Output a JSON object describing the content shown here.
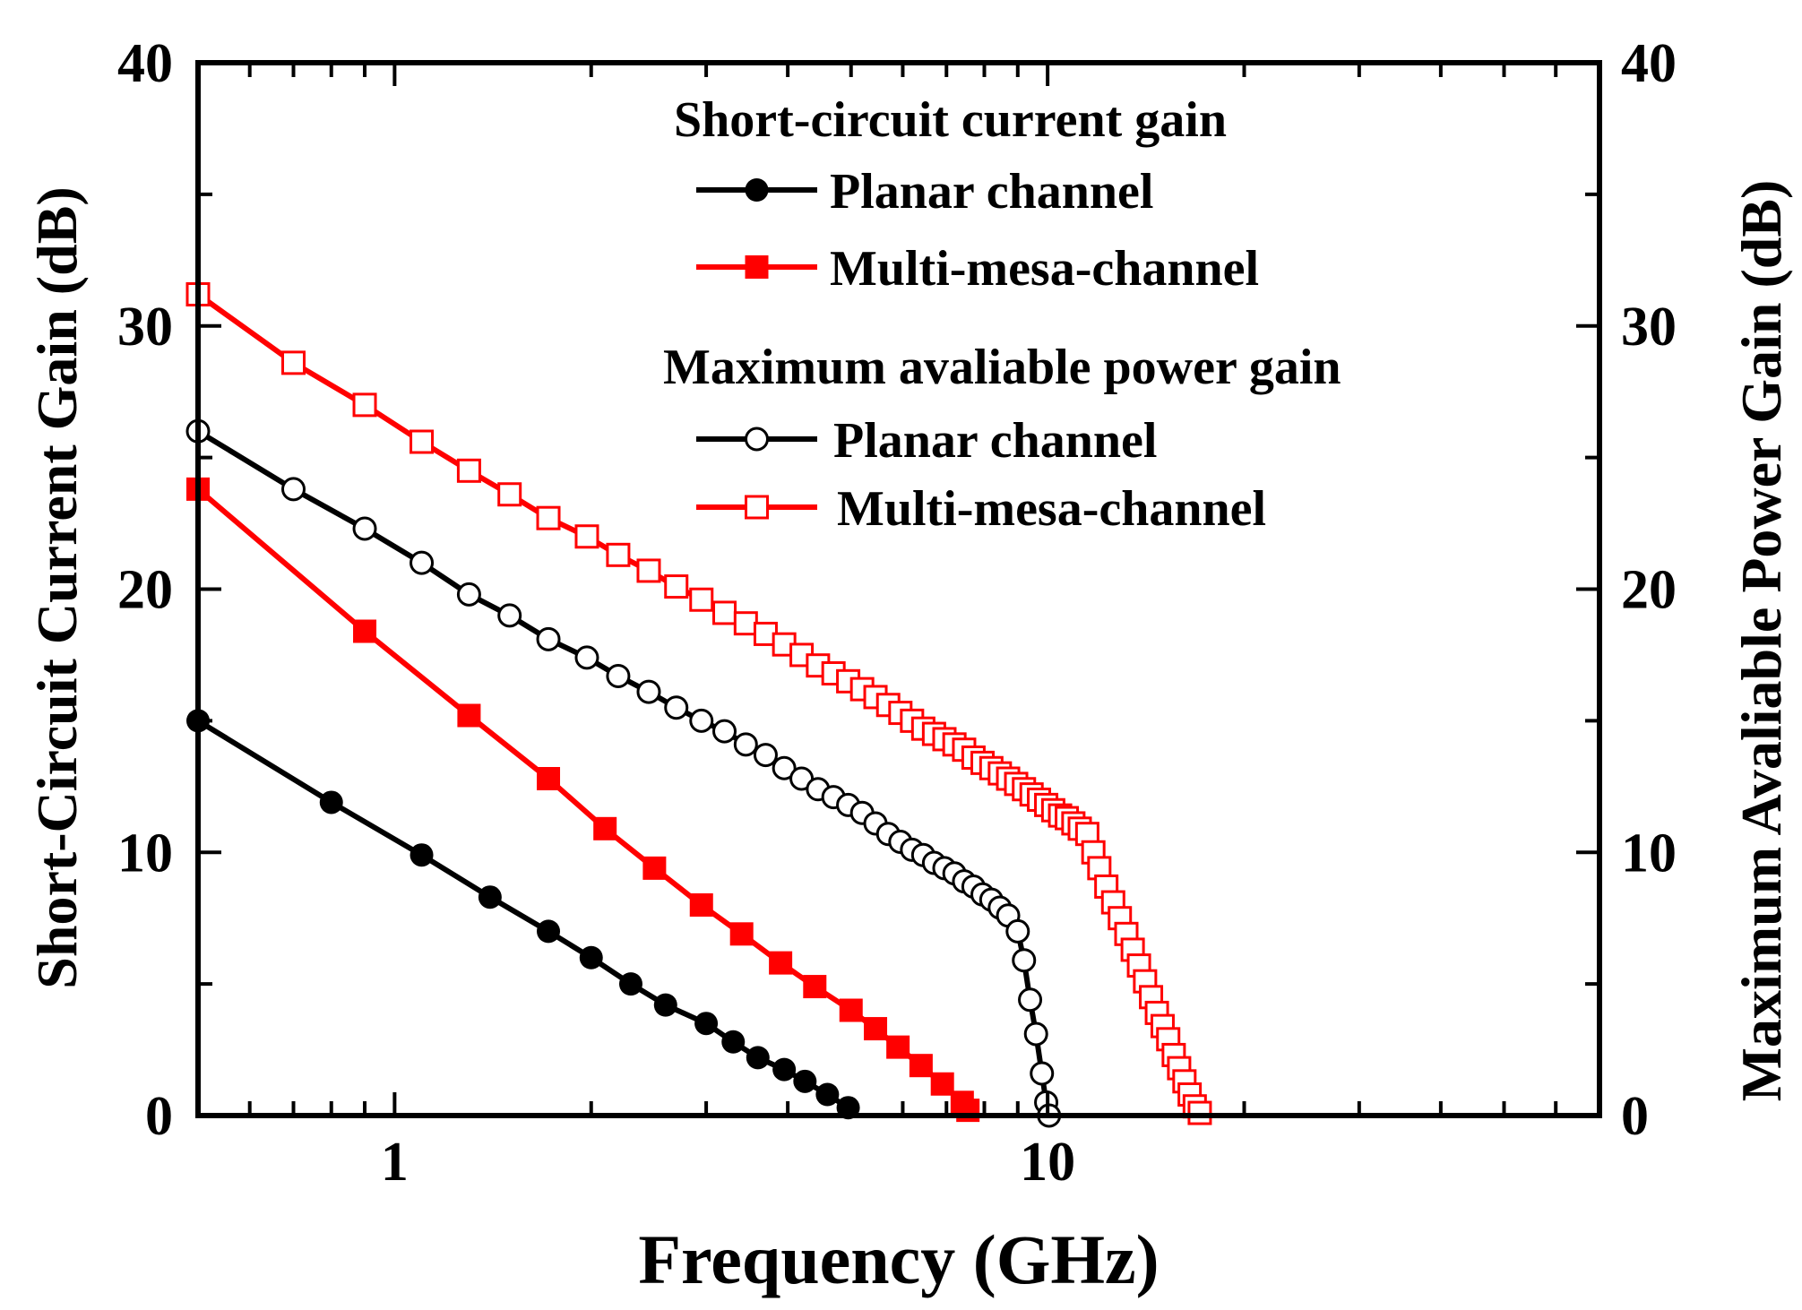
{
  "chart_data": {
    "type": "line",
    "x_scale": "log",
    "xlim": [
      0.5,
      70
    ],
    "ylim": [
      0,
      40
    ],
    "y2lim": [
      0,
      40
    ],
    "xlabel": "Frequency (GHz)",
    "ylabel": "Short-Circuit Current Gain (dB)",
    "y2label": "Maximum Avaliable Power Gain (dB)",
    "x_ticks": [
      {
        "value": 1,
        "label": "1"
      },
      {
        "value": 10,
        "label": "10"
      }
    ],
    "y_ticks": [
      {
        "value": 0,
        "label": "0"
      },
      {
        "value": 10,
        "label": "10"
      },
      {
        "value": 20,
        "label": "20"
      },
      {
        "value": 30,
        "label": "30"
      },
      {
        "value": 40,
        "label": "40"
      }
    ],
    "y2_ticks": [
      {
        "value": 0,
        "label": "0"
      },
      {
        "value": 10,
        "label": "10"
      },
      {
        "value": 20,
        "label": "20"
      },
      {
        "value": 30,
        "label": "30"
      },
      {
        "value": 40,
        "label": "40"
      }
    ],
    "grid": false,
    "legend_position": "top-right",
    "legend_groups": [
      {
        "title": "Short-circuit current gain",
        "series": [
          0,
          1
        ]
      },
      {
        "title": "Maximum avaliable power gain",
        "series": [
          2,
          3
        ]
      }
    ],
    "series": [
      {
        "name": "Planar channel",
        "group": "Short-circuit current gain",
        "axis": "left",
        "color": "#000000",
        "marker": "filled-circle",
        "points": [
          [
            0.5,
            15.0
          ],
          [
            0.8,
            11.9
          ],
          [
            1.1,
            9.9
          ],
          [
            1.4,
            8.3
          ],
          [
            1.72,
            7.0
          ],
          [
            2.0,
            6.0
          ],
          [
            2.3,
            5.0
          ],
          [
            2.6,
            4.2
          ],
          [
            3.0,
            3.5
          ],
          [
            3.3,
            2.8
          ],
          [
            3.6,
            2.2
          ],
          [
            3.95,
            1.75
          ],
          [
            4.25,
            1.3
          ],
          [
            4.6,
            0.8
          ],
          [
            4.95,
            0.3
          ]
        ]
      },
      {
        "name": "Multi-mesa-channel",
        "group": "Short-circuit current gain",
        "axis": "left",
        "color": "#ff0000",
        "marker": "filled-square",
        "points": [
          [
            0.5,
            23.8
          ],
          [
            0.9,
            18.4
          ],
          [
            1.3,
            15.2
          ],
          [
            1.72,
            12.8
          ],
          [
            2.1,
            10.9
          ],
          [
            2.5,
            9.4
          ],
          [
            2.95,
            8.0
          ],
          [
            3.4,
            6.9
          ],
          [
            3.9,
            5.8
          ],
          [
            4.4,
            4.9
          ],
          [
            5.0,
            4.0
          ],
          [
            5.45,
            3.3
          ],
          [
            5.9,
            2.6
          ],
          [
            6.4,
            1.9
          ],
          [
            6.9,
            1.2
          ],
          [
            7.4,
            0.5
          ],
          [
            7.55,
            0.2
          ]
        ]
      },
      {
        "name": "Planar channel",
        "group": "Maximum avaliable power gain",
        "axis": "right",
        "color": "#000000",
        "marker": "open-circle",
        "points": [
          [
            0.5,
            26.0
          ],
          [
            0.7,
            23.8
          ],
          [
            0.9,
            22.3
          ],
          [
            1.1,
            21.0
          ],
          [
            1.3,
            19.8
          ],
          [
            1.5,
            19.0
          ],
          [
            1.72,
            18.1
          ],
          [
            1.97,
            17.4
          ],
          [
            2.2,
            16.7
          ],
          [
            2.45,
            16.1
          ],
          [
            2.7,
            15.5
          ],
          [
            2.95,
            15.0
          ],
          [
            3.2,
            14.6
          ],
          [
            3.45,
            14.1
          ],
          [
            3.7,
            13.7
          ],
          [
            3.95,
            13.2
          ],
          [
            4.2,
            12.8
          ],
          [
            4.45,
            12.4
          ],
          [
            4.7,
            12.1
          ],
          [
            4.95,
            11.8
          ],
          [
            5.2,
            11.5
          ],
          [
            5.45,
            11.1
          ],
          [
            5.7,
            10.7
          ],
          [
            5.95,
            10.4
          ],
          [
            6.2,
            10.1
          ],
          [
            6.45,
            9.9
          ],
          [
            6.7,
            9.6
          ],
          [
            6.95,
            9.4
          ],
          [
            7.2,
            9.2
          ],
          [
            7.45,
            8.9
          ],
          [
            7.7,
            8.7
          ],
          [
            7.95,
            8.4
          ],
          [
            8.2,
            8.2
          ],
          [
            8.45,
            7.9
          ],
          [
            8.7,
            7.6
          ],
          [
            9.0,
            7.0
          ],
          [
            9.2,
            5.9
          ],
          [
            9.4,
            4.4
          ],
          [
            9.6,
            3.1
          ],
          [
            9.8,
            1.6
          ],
          [
            9.95,
            0.5
          ],
          [
            10.05,
            0.0
          ]
        ]
      },
      {
        "name": "Multi-mesa-channel",
        "group": "Maximum avaliable power gain",
        "axis": "right",
        "color": "#ff0000",
        "marker": "open-square",
        "points": [
          [
            0.5,
            31.2
          ],
          [
            0.7,
            28.6
          ],
          [
            0.9,
            27.0
          ],
          [
            1.1,
            25.6
          ],
          [
            1.3,
            24.5
          ],
          [
            1.5,
            23.6
          ],
          [
            1.72,
            22.7
          ],
          [
            1.97,
            22.0
          ],
          [
            2.2,
            21.3
          ],
          [
            2.45,
            20.7
          ],
          [
            2.7,
            20.1
          ],
          [
            2.95,
            19.6
          ],
          [
            3.2,
            19.1
          ],
          [
            3.45,
            18.7
          ],
          [
            3.7,
            18.3
          ],
          [
            3.95,
            17.9
          ],
          [
            4.2,
            17.5
          ],
          [
            4.45,
            17.1
          ],
          [
            4.7,
            16.8
          ],
          [
            4.95,
            16.5
          ],
          [
            5.2,
            16.2
          ],
          [
            5.45,
            15.9
          ],
          [
            5.7,
            15.6
          ],
          [
            5.95,
            15.3
          ],
          [
            6.2,
            15.0
          ],
          [
            6.45,
            14.7
          ],
          [
            6.7,
            14.5
          ],
          [
            6.95,
            14.3
          ],
          [
            7.2,
            14.1
          ],
          [
            7.45,
            13.9
          ],
          [
            7.7,
            13.6
          ],
          [
            7.95,
            13.4
          ],
          [
            8.2,
            13.2
          ],
          [
            8.45,
            13.0
          ],
          [
            8.7,
            12.8
          ],
          [
            8.95,
            12.6
          ],
          [
            9.2,
            12.4
          ],
          [
            9.45,
            12.2
          ],
          [
            9.7,
            12.0
          ],
          [
            9.95,
            11.8
          ],
          [
            10.2,
            11.6
          ],
          [
            10.45,
            11.4
          ],
          [
            10.7,
            11.3
          ],
          [
            10.95,
            11.1
          ],
          [
            11.2,
            10.9
          ],
          [
            11.5,
            10.7
          ],
          [
            11.75,
            10.0
          ],
          [
            12.0,
            9.4
          ],
          [
            12.3,
            8.7
          ],
          [
            12.6,
            8.1
          ],
          [
            12.9,
            7.5
          ],
          [
            13.2,
            6.9
          ],
          [
            13.5,
            6.3
          ],
          [
            13.8,
            5.7
          ],
          [
            14.1,
            5.1
          ],
          [
            14.4,
            4.5
          ],
          [
            14.7,
            3.9
          ],
          [
            15.0,
            3.4
          ],
          [
            15.3,
            2.9
          ],
          [
            15.6,
            2.3
          ],
          [
            15.9,
            1.8
          ],
          [
            16.2,
            1.3
          ],
          [
            16.5,
            0.8
          ],
          [
            16.8,
            0.35
          ],
          [
            17.1,
            0.1
          ]
        ]
      }
    ]
  }
}
